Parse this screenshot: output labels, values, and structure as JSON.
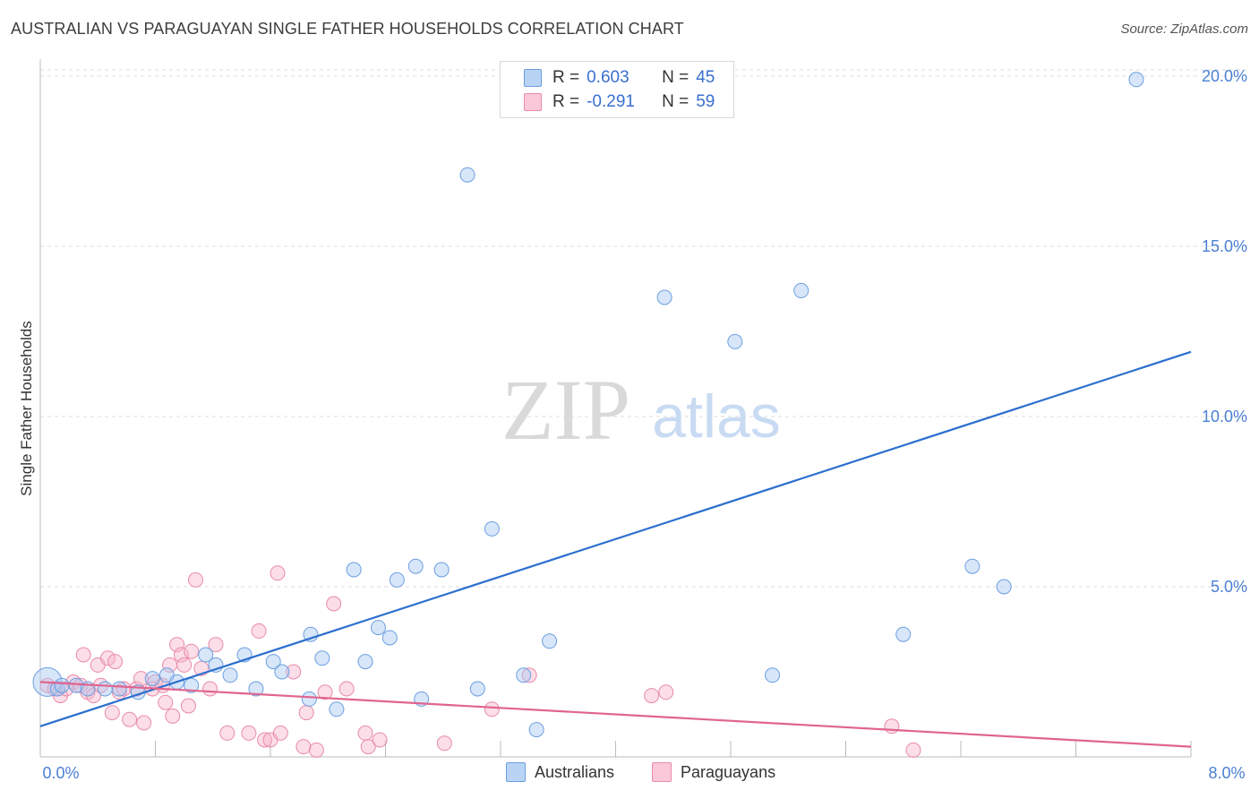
{
  "header": {
    "title": "AUSTRALIAN VS PARAGUAYAN SINGLE FATHER HOUSEHOLDS CORRELATION CHART",
    "source": "Source: ZipAtlas.com"
  },
  "watermark": {
    "zip": "ZIP",
    "atlas": "atlas"
  },
  "legend": {
    "rows": [
      {
        "r_label": "R =",
        "r_value": "0.603",
        "n_label": "N =",
        "n_value": "45"
      },
      {
        "r_label": "R =",
        "r_value": "-0.291",
        "n_label": "N =",
        "n_value": "59"
      }
    ]
  },
  "bottom_legend": {
    "australians": "Australians",
    "paraguayans": "Paraguayans"
  },
  "colors": {
    "blue_fill": "#a9c8f2",
    "blue_stroke": "#6b9fe0",
    "blue_line": "#2b6fcf",
    "pink_fill": "#f7b6cb",
    "pink_stroke": "#e98aa9",
    "pink_line": "#e0648f",
    "axis_text": "#4a7fd4",
    "grid": "#dedede"
  },
  "chart_data": {
    "type": "scatter",
    "title": "AUSTRALIAN VS PARAGUAYAN SINGLE FATHER HOUSEHOLDS CORRELATION CHART",
    "xlabel": "",
    "ylabel": "Single Father Households",
    "xlim": [
      0,
      8
    ],
    "ylim": [
      0,
      20.5
    ],
    "x_tick_labels": [
      "0.0%",
      "8.0%"
    ],
    "y_ticks": [
      5,
      10,
      15,
      20
    ],
    "y_tick_labels": [
      "5.0%",
      "10.0%",
      "15.0%",
      "20.0%"
    ],
    "series": [
      {
        "name": "Australians",
        "R": 0.603,
        "N": 45,
        "trend": {
          "x": [
            0,
            8
          ],
          "y": [
            0.9,
            11.9
          ]
        },
        "points": [
          {
            "x": 0.05,
            "y": 2.2,
            "big": true
          },
          {
            "x": 0.12,
            "y": 2.0
          },
          {
            "x": 0.15,
            "y": 2.1
          },
          {
            "x": 0.25,
            "y": 2.1
          },
          {
            "x": 0.33,
            "y": 2.0
          },
          {
            "x": 0.45,
            "y": 2.0
          },
          {
            "x": 0.55,
            "y": 2.0
          },
          {
            "x": 0.68,
            "y": 1.9
          },
          {
            "x": 0.78,
            "y": 2.3
          },
          {
            "x": 0.88,
            "y": 2.4
          },
          {
            "x": 0.95,
            "y": 2.2
          },
          {
            "x": 1.05,
            "y": 2.1
          },
          {
            "x": 1.15,
            "y": 3.0
          },
          {
            "x": 1.22,
            "y": 2.7
          },
          {
            "x": 1.32,
            "y": 2.4
          },
          {
            "x": 1.42,
            "y": 3.0
          },
          {
            "x": 1.5,
            "y": 2.0
          },
          {
            "x": 1.62,
            "y": 2.8
          },
          {
            "x": 1.68,
            "y": 2.5
          },
          {
            "x": 1.87,
            "y": 1.7
          },
          {
            "x": 1.88,
            "y": 3.6
          },
          {
            "x": 1.96,
            "y": 2.9
          },
          {
            "x": 2.06,
            "y": 1.4
          },
          {
            "x": 2.18,
            "y": 5.5
          },
          {
            "x": 2.26,
            "y": 2.8
          },
          {
            "x": 2.35,
            "y": 3.8
          },
          {
            "x": 2.43,
            "y": 3.5
          },
          {
            "x": 2.48,
            "y": 5.2
          },
          {
            "x": 2.61,
            "y": 5.6
          },
          {
            "x": 2.65,
            "y": 1.7
          },
          {
            "x": 2.79,
            "y": 5.5
          },
          {
            "x": 3.04,
            "y": 2.0
          },
          {
            "x": 2.97,
            "y": 17.1
          },
          {
            "x": 3.14,
            "y": 6.7
          },
          {
            "x": 3.36,
            "y": 2.4
          },
          {
            "x": 3.45,
            "y": 0.8
          },
          {
            "x": 3.54,
            "y": 3.4
          },
          {
            "x": 4.34,
            "y": 13.5
          },
          {
            "x": 4.83,
            "y": 12.2
          },
          {
            "x": 5.09,
            "y": 2.4
          },
          {
            "x": 5.29,
            "y": 13.7
          },
          {
            "x": 6.0,
            "y": 3.6
          },
          {
            "x": 6.48,
            "y": 5.6
          },
          {
            "x": 6.7,
            "y": 5.0
          },
          {
            "x": 7.62,
            "y": 19.9
          }
        ]
      },
      {
        "name": "Paraguayans",
        "R": -0.291,
        "N": 59,
        "trend": {
          "x": [
            0,
            8
          ],
          "y": [
            2.2,
            0.3
          ]
        },
        "points": [
          {
            "x": 0.05,
            "y": 2.1
          },
          {
            "x": 0.1,
            "y": 2.0
          },
          {
            "x": 0.14,
            "y": 1.8
          },
          {
            "x": 0.18,
            "y": 2.0
          },
          {
            "x": 0.23,
            "y": 2.2
          },
          {
            "x": 0.28,
            "y": 2.1
          },
          {
            "x": 0.3,
            "y": 3.0
          },
          {
            "x": 0.33,
            "y": 1.9
          },
          {
            "x": 0.37,
            "y": 1.8
          },
          {
            "x": 0.4,
            "y": 2.7
          },
          {
            "x": 0.42,
            "y": 2.1
          },
          {
            "x": 0.47,
            "y": 2.9
          },
          {
            "x": 0.5,
            "y": 1.3
          },
          {
            "x": 0.52,
            "y": 2.8
          },
          {
            "x": 0.55,
            "y": 1.9
          },
          {
            "x": 0.58,
            "y": 2.0
          },
          {
            "x": 0.62,
            "y": 1.1
          },
          {
            "x": 0.67,
            "y": 2.0
          },
          {
            "x": 0.7,
            "y": 2.3
          },
          {
            "x": 0.72,
            "y": 1.0
          },
          {
            "x": 0.78,
            "y": 2.0
          },
          {
            "x": 0.8,
            "y": 2.2
          },
          {
            "x": 0.85,
            "y": 2.1
          },
          {
            "x": 0.87,
            "y": 1.6
          },
          {
            "x": 0.9,
            "y": 2.7
          },
          {
            "x": 0.92,
            "y": 1.2
          },
          {
            "x": 0.95,
            "y": 3.3
          },
          {
            "x": 0.98,
            "y": 3.0
          },
          {
            "x": 1.0,
            "y": 2.7
          },
          {
            "x": 1.03,
            "y": 1.5
          },
          {
            "x": 1.05,
            "y": 3.1
          },
          {
            "x": 1.08,
            "y": 5.2
          },
          {
            "x": 1.12,
            "y": 2.6
          },
          {
            "x": 1.18,
            "y": 2.0
          },
          {
            "x": 1.22,
            "y": 3.3
          },
          {
            "x": 1.3,
            "y": 0.7
          },
          {
            "x": 1.45,
            "y": 0.7
          },
          {
            "x": 1.52,
            "y": 3.7
          },
          {
            "x": 1.56,
            "y": 0.5
          },
          {
            "x": 1.6,
            "y": 0.5
          },
          {
            "x": 1.65,
            "y": 5.4
          },
          {
            "x": 1.67,
            "y": 0.7
          },
          {
            "x": 1.76,
            "y": 2.5
          },
          {
            "x": 1.83,
            "y": 0.3
          },
          {
            "x": 1.85,
            "y": 1.3
          },
          {
            "x": 1.92,
            "y": 0.2
          },
          {
            "x": 1.98,
            "y": 1.9
          },
          {
            "x": 2.04,
            "y": 4.5
          },
          {
            "x": 2.13,
            "y": 2.0
          },
          {
            "x": 2.26,
            "y": 0.7
          },
          {
            "x": 2.28,
            "y": 0.3
          },
          {
            "x": 2.36,
            "y": 0.5
          },
          {
            "x": 2.81,
            "y": 0.4
          },
          {
            "x": 3.14,
            "y": 1.4
          },
          {
            "x": 3.4,
            "y": 2.4
          },
          {
            "x": 4.25,
            "y": 1.8
          },
          {
            "x": 4.35,
            "y": 1.9
          },
          {
            "x": 5.92,
            "y": 0.9
          },
          {
            "x": 6.07,
            "y": 0.2
          }
        ]
      }
    ]
  }
}
